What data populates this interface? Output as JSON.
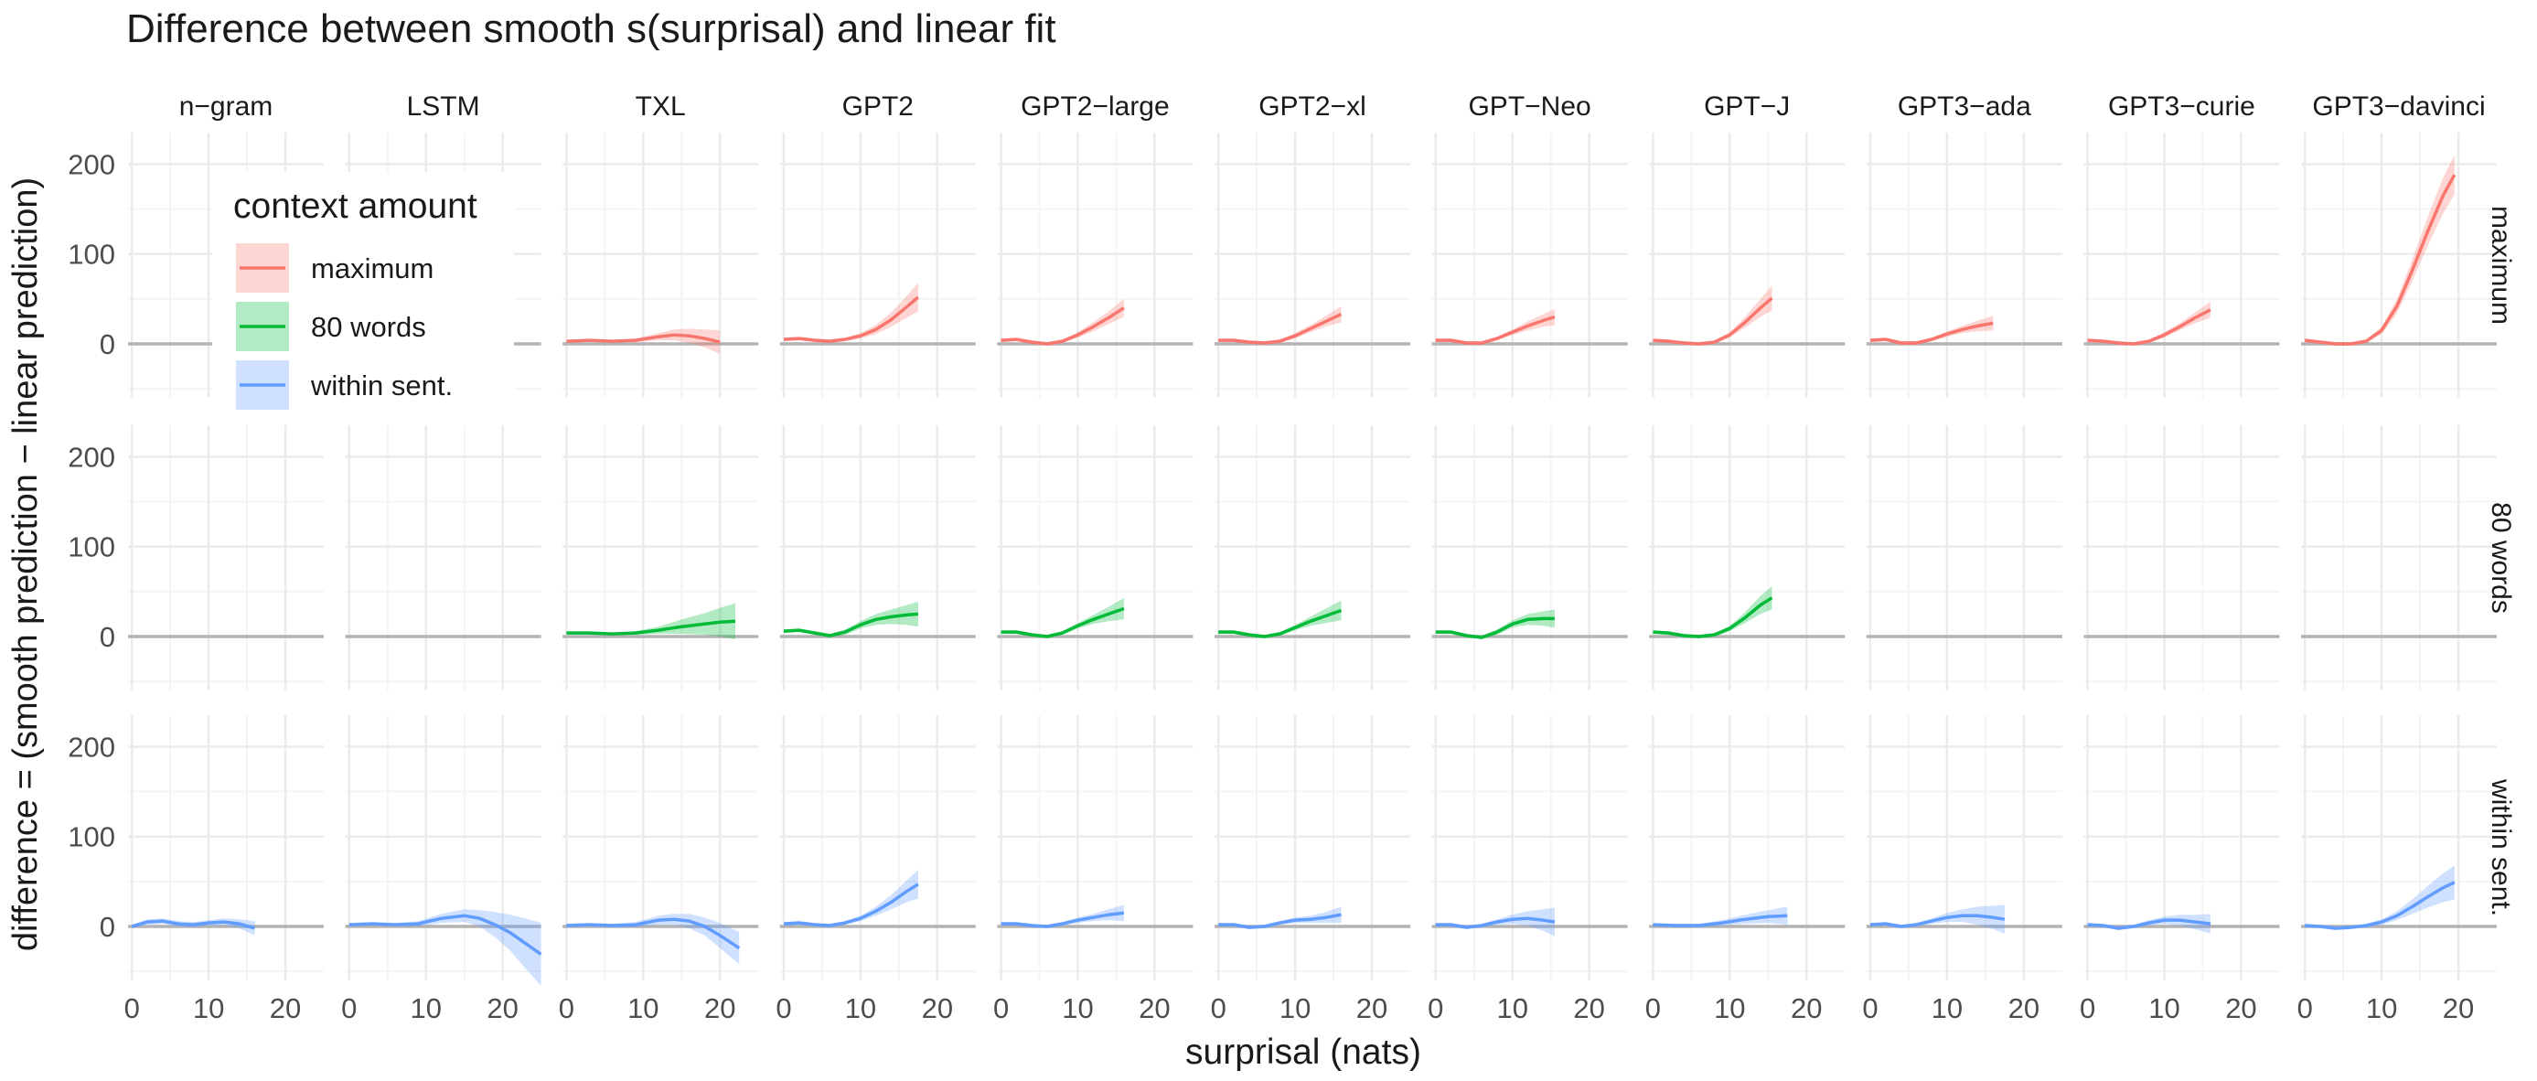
{
  "chart_data": {
    "type": "line",
    "title": "Difference between smooth s(surprisal) and linear fit",
    "xlabel": "surprisal (nats)",
    "ylabel": "difference = (smooth prediction − linear prediction)",
    "xlim": [
      -0.5,
      25
    ],
    "ylim": [
      -60,
      235
    ],
    "x_ticks": [
      0,
      10,
      20
    ],
    "x_tick_labels": [
      "0",
      "10",
      "20"
    ],
    "y_ticks": [
      0,
      100,
      200
    ],
    "y_tick_labels": [
      "0",
      "100",
      "200"
    ],
    "grid": true,
    "legend": {
      "title": "context amount",
      "placement": "top-left",
      "entries": [
        "maximum",
        "80 words",
        "within sent."
      ]
    },
    "colors": {
      "maximum": "#F8766D",
      "80 words": "#00BA38",
      "within sent.": "#619CFF",
      "zero_line": "#b3b3b3",
      "grid_major": "#ebebeb",
      "grid_minor": "#f4f4f4"
    },
    "models": [
      "n−gram",
      "LSTM",
      "TXL",
      "GPT2",
      "GPT2−large",
      "GPT2−xl",
      "GPT−Neo",
      "GPT−J",
      "GPT3−ada",
      "GPT3−curie",
      "GPT3−davinci"
    ],
    "rows": [
      "maximum",
      "80 words",
      "within sent."
    ],
    "panels": [
      {
        "row": "maximum",
        "model": "TXL",
        "x": [
          0,
          3,
          6,
          9,
          12,
          14,
          16,
          18,
          20
        ],
        "y": [
          3,
          4,
          3,
          4,
          8,
          10,
          9,
          6,
          2
        ],
        "se": [
          1,
          1,
          1,
          2,
          4,
          6,
          8,
          10,
          13
        ]
      },
      {
        "row": "maximum",
        "model": "GPT2",
        "x": [
          0,
          2,
          4,
          6,
          8,
          10,
          12,
          14,
          16,
          17.5
        ],
        "y": [
          5,
          6,
          4,
          3,
          5,
          9,
          16,
          27,
          41,
          52
        ],
        "se": [
          2,
          2,
          2,
          2,
          2,
          3,
          5,
          8,
          12,
          16
        ]
      },
      {
        "row": "maximum",
        "model": "GPT2−large",
        "x": [
          0,
          2,
          4,
          6,
          8,
          10,
          12,
          14,
          16
        ],
        "y": [
          4,
          5,
          2,
          0,
          3,
          10,
          19,
          29,
          40
        ],
        "se": [
          2,
          2,
          2,
          2,
          2,
          3,
          5,
          7,
          10
        ]
      },
      {
        "row": "maximum",
        "model": "GPT2−xl",
        "x": [
          0,
          2,
          4,
          6,
          8,
          10,
          12,
          14,
          16
        ],
        "y": [
          4,
          4,
          2,
          1,
          3,
          9,
          17,
          25,
          33
        ],
        "se": [
          2,
          2,
          2,
          2,
          2,
          3,
          4,
          6,
          9
        ]
      },
      {
        "row": "maximum",
        "model": "GPT−Neo",
        "x": [
          0,
          2,
          4,
          6,
          8,
          10,
          12,
          14,
          15.5
        ],
        "y": [
          4,
          4,
          1,
          1,
          6,
          13,
          20,
          26,
          30
        ],
        "se": [
          2,
          2,
          2,
          2,
          2,
          3,
          5,
          7,
          9
        ]
      },
      {
        "row": "maximum",
        "model": "GPT−J",
        "x": [
          0,
          2,
          4,
          6,
          8,
          10,
          12,
          14,
          15.5
        ],
        "y": [
          4,
          3,
          1,
          0,
          2,
          10,
          24,
          40,
          51
        ],
        "se": [
          2,
          2,
          2,
          2,
          2,
          3,
          6,
          10,
          14
        ]
      },
      {
        "row": "maximum",
        "model": "GPT3−ada",
        "x": [
          0,
          2,
          4,
          6,
          8,
          10,
          12,
          14,
          16
        ],
        "y": [
          4,
          5,
          1,
          1,
          5,
          11,
          16,
          20,
          23
        ],
        "se": [
          2,
          2,
          2,
          2,
          2,
          3,
          4,
          6,
          8
        ]
      },
      {
        "row": "maximum",
        "model": "GPT3−curie",
        "x": [
          0,
          2,
          4,
          6,
          8,
          10,
          12,
          14,
          16
        ],
        "y": [
          4,
          3,
          1,
          0,
          3,
          10,
          19,
          29,
          38
        ],
        "se": [
          2,
          2,
          2,
          2,
          2,
          3,
          4,
          6,
          9
        ]
      },
      {
        "row": "maximum",
        "model": "GPT3−davinci",
        "x": [
          0,
          2,
          4,
          6,
          8,
          10,
          12,
          14,
          16,
          18,
          19.5
        ],
        "y": [
          4,
          2,
          0,
          0,
          3,
          15,
          42,
          82,
          125,
          165,
          188
        ],
        "se": [
          2,
          2,
          2,
          2,
          2,
          4,
          8,
          12,
          16,
          20,
          22
        ]
      },
      {
        "row": "80 words",
        "model": "TXL",
        "x": [
          0,
          3,
          6,
          9,
          12,
          15,
          18,
          20,
          22
        ],
        "y": [
          4,
          4,
          3,
          4,
          7,
          11,
          14,
          16,
          17
        ],
        "se": [
          1,
          1,
          1,
          2,
          4,
          8,
          12,
          16,
          20
        ]
      },
      {
        "row": "80 words",
        "model": "GPT2",
        "x": [
          0,
          2,
          4,
          6,
          8,
          10,
          12,
          14,
          16,
          17.5
        ],
        "y": [
          6,
          7,
          4,
          1,
          5,
          13,
          19,
          22,
          24,
          25
        ],
        "se": [
          2,
          2,
          2,
          2,
          3,
          4,
          6,
          8,
          11,
          14
        ]
      },
      {
        "row": "80 words",
        "model": "GPT2−large",
        "x": [
          0,
          2,
          4,
          6,
          8,
          10,
          12,
          14,
          16
        ],
        "y": [
          5,
          5,
          2,
          0,
          4,
          12,
          19,
          25,
          31
        ],
        "se": [
          2,
          2,
          2,
          2,
          2,
          3,
          5,
          8,
          12
        ]
      },
      {
        "row": "80 words",
        "model": "GPT2−xl",
        "x": [
          0,
          2,
          4,
          6,
          8,
          10,
          12,
          14,
          16
        ],
        "y": [
          5,
          5,
          2,
          0,
          3,
          10,
          17,
          23,
          29
        ],
        "se": [
          2,
          2,
          2,
          2,
          2,
          3,
          5,
          8,
          11
        ]
      },
      {
        "row": "80 words",
        "model": "GPT−Neo",
        "x": [
          0,
          2,
          4,
          6,
          8,
          10,
          12,
          14,
          15.5
        ],
        "y": [
          5,
          5,
          1,
          -1,
          5,
          14,
          19,
          20,
          20
        ],
        "se": [
          2,
          2,
          2,
          2,
          3,
          4,
          6,
          8,
          10
        ]
      },
      {
        "row": "80 words",
        "model": "GPT−J",
        "x": [
          0,
          2,
          4,
          6,
          8,
          10,
          12,
          14,
          15.5
        ],
        "y": [
          5,
          4,
          1,
          0,
          2,
          9,
          21,
          35,
          43
        ],
        "se": [
          2,
          2,
          2,
          2,
          2,
          3,
          6,
          10,
          13
        ]
      },
      {
        "row": "within sent.",
        "model": "n−gram",
        "x": [
          0,
          2,
          4,
          6,
          8,
          10,
          12,
          14,
          16
        ],
        "y": [
          0,
          5,
          6,
          3,
          2,
          4,
          5,
          3,
          -2
        ],
        "se": [
          2,
          3,
          3,
          3,
          3,
          3,
          4,
          5,
          8
        ]
      },
      {
        "row": "within sent.",
        "model": "LSTM",
        "x": [
          0,
          3,
          6,
          9,
          12,
          15,
          17,
          19,
          21,
          23,
          25
        ],
        "y": [
          2,
          3,
          2,
          3,
          9,
          12,
          9,
          2,
          -7,
          -19,
          -31
        ],
        "se": [
          2,
          2,
          2,
          3,
          5,
          7,
          9,
          14,
          20,
          28,
          35
        ]
      },
      {
        "row": "within sent.",
        "model": "TXL",
        "x": [
          0,
          3,
          6,
          9,
          12,
          14,
          16,
          18,
          20,
          22.5
        ],
        "y": [
          1,
          2,
          1,
          2,
          7,
          8,
          6,
          0,
          -10,
          -24
        ],
        "se": [
          2,
          2,
          2,
          3,
          5,
          6,
          8,
          10,
          14,
          18
        ]
      },
      {
        "row": "within sent.",
        "model": "GPT2",
        "x": [
          0,
          2,
          4,
          6,
          8,
          10,
          12,
          14,
          16,
          17.5
        ],
        "y": [
          3,
          4,
          2,
          1,
          4,
          9,
          17,
          27,
          39,
          47
        ],
        "se": [
          2,
          2,
          2,
          2,
          2,
          3,
          5,
          8,
          12,
          16
        ]
      },
      {
        "row": "within sent.",
        "model": "GPT2−large",
        "x": [
          0,
          2,
          4,
          6,
          8,
          10,
          12,
          14,
          16
        ],
        "y": [
          3,
          3,
          1,
          0,
          3,
          7,
          10,
          13,
          15
        ],
        "se": [
          2,
          2,
          2,
          2,
          2,
          3,
          4,
          6,
          9
        ]
      },
      {
        "row": "within sent.",
        "model": "GPT2−xl",
        "x": [
          0,
          2,
          4,
          6,
          8,
          10,
          12,
          14,
          16
        ],
        "y": [
          2,
          2,
          -1,
          0,
          4,
          7,
          8,
          10,
          13
        ],
        "se": [
          2,
          2,
          2,
          2,
          2,
          3,
          4,
          6,
          9
        ]
      },
      {
        "row": "within sent.",
        "model": "GPT−Neo",
        "x": [
          0,
          2,
          4,
          6,
          8,
          10,
          12,
          14,
          15.5
        ],
        "y": [
          2,
          2,
          -1,
          1,
          5,
          8,
          9,
          7,
          5
        ],
        "se": [
          2,
          2,
          2,
          2,
          3,
          5,
          8,
          12,
          16
        ]
      },
      {
        "row": "within sent.",
        "model": "GPT−J",
        "x": [
          0,
          3,
          6,
          9,
          12,
          15,
          17.5
        ],
        "y": [
          2,
          1,
          1,
          4,
          8,
          11,
          12
        ],
        "se": [
          2,
          2,
          2,
          3,
          5,
          7,
          10
        ]
      },
      {
        "row": "within sent.",
        "model": "GPT3−ada",
        "x": [
          0,
          2,
          4,
          6,
          8,
          10,
          12,
          14,
          16,
          17.5
        ],
        "y": [
          2,
          3,
          0,
          2,
          6,
          10,
          12,
          12,
          10,
          8
        ],
        "se": [
          2,
          2,
          2,
          2,
          3,
          5,
          7,
          10,
          13,
          16
        ]
      },
      {
        "row": "within sent.",
        "model": "GPT3−curie",
        "x": [
          0,
          2,
          4,
          6,
          8,
          10,
          12,
          14,
          16
        ],
        "y": [
          2,
          1,
          -2,
          0,
          4,
          7,
          7,
          5,
          3
        ],
        "se": [
          2,
          2,
          2,
          2,
          3,
          4,
          6,
          8,
          11
        ]
      },
      {
        "row": "within sent.",
        "model": "GPT3−davinci",
        "x": [
          0,
          2,
          4,
          6,
          8,
          10,
          12,
          14,
          16,
          18,
          19.5
        ],
        "y": [
          1,
          0,
          -2,
          -1,
          1,
          5,
          12,
          22,
          33,
          43,
          49
        ],
        "se": [
          2,
          2,
          2,
          2,
          2,
          3,
          5,
          8,
          12,
          16,
          19
        ]
      }
    ]
  }
}
